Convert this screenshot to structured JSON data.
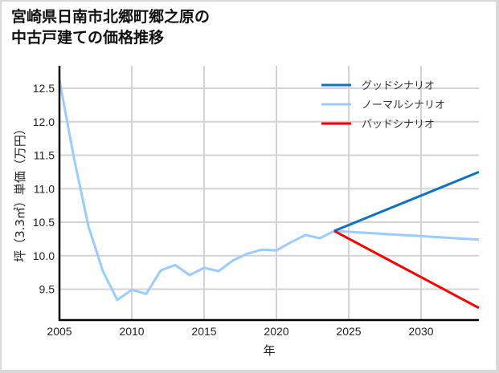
{
  "title": {
    "line1": "宮崎県日南市北郷町郷之原の",
    "line2": "中古戸建ての価格推移"
  },
  "chart_data": {
    "type": "line",
    "title": "宮崎県日南市北郷町郷之原の中古戸建ての価格推移",
    "xlabel": "年",
    "ylabel": "坪（3.3㎡）単価（万円）",
    "xlim": [
      2005,
      2034
    ],
    "ylim": [
      9.2,
      12.75
    ],
    "x_ticks": [
      2005,
      2010,
      2015,
      2020,
      2025,
      2030
    ],
    "y_ticks": [
      9.5,
      10.0,
      10.5,
      11.0,
      11.5,
      12.0,
      12.5
    ],
    "y_tick_labels": [
      "9.5",
      "10.0",
      "10.5",
      "11.0",
      "11.5",
      "12.0",
      "12.5"
    ],
    "grid": true,
    "legend_position": "upper right",
    "series": [
      {
        "name": "グッドシナリオ",
        "color": "#0a72c8",
        "x": [
          2024,
          2034
        ],
        "values": [
          10.37,
          11.25
        ]
      },
      {
        "name": "ノーマルシナリオ",
        "color": "#99ccff",
        "x": [
          2005,
          2006,
          2007,
          2008,
          2009,
          2010,
          2011,
          2012,
          2013,
          2014,
          2015,
          2016,
          2017,
          2018,
          2019,
          2020,
          2021,
          2022,
          2023,
          2024,
          2034
        ],
        "values": [
          12.62,
          11.46,
          10.44,
          9.77,
          9.34,
          9.49,
          9.43,
          9.78,
          9.86,
          9.71,
          9.82,
          9.77,
          9.93,
          10.03,
          10.09,
          10.08,
          10.2,
          10.31,
          10.26,
          10.37,
          10.24
        ]
      },
      {
        "name": "バッドシナリオ",
        "color": "#ff0000",
        "x": [
          2024,
          2034
        ],
        "values": [
          10.37,
          9.22
        ]
      }
    ]
  }
}
